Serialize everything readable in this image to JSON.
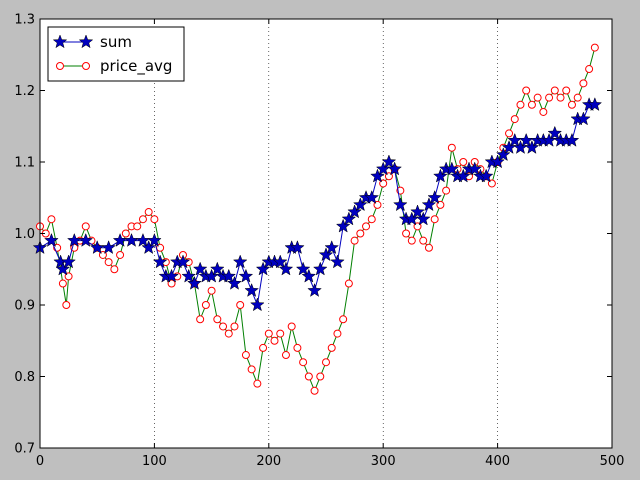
{
  "chart_data": {
    "type": "line",
    "xlim": [
      0,
      500
    ],
    "ylim": [
      0.7,
      1.3
    ],
    "x_ticks": [
      0,
      100,
      200,
      300,
      400,
      500
    ],
    "y_ticks": [
      0.7,
      0.8,
      0.9,
      1.0,
      1.1,
      1.2,
      1.3
    ],
    "x_tick_labels": [
      "0",
      "100",
      "200",
      "300",
      "400",
      "500"
    ],
    "y_tick_labels": [
      "0.7",
      "0.8",
      "0.9",
      "1.0",
      "1.1",
      "1.2",
      "1.3"
    ],
    "vertical_grid": true,
    "horizontal_grid": false,
    "legend_position": "top-left",
    "series": [
      {
        "name": "sum",
        "color": "#0000bf",
        "marker": "star",
        "x": [
          0,
          10,
          18,
          20,
          25,
          30,
          40,
          50,
          60,
          70,
          80,
          90,
          95,
          100,
          105,
          110,
          115,
          120,
          125,
          130,
          135,
          140,
          145,
          150,
          155,
          160,
          165,
          170,
          175,
          180,
          185,
          190,
          195,
          200,
          205,
          210,
          215,
          220,
          225,
          230,
          235,
          240,
          245,
          250,
          255,
          260,
          265,
          270,
          275,
          280,
          285,
          290,
          295,
          300,
          305,
          310,
          315,
          320,
          325,
          330,
          335,
          340,
          345,
          350,
          355,
          360,
          365,
          370,
          375,
          380,
          385,
          390,
          395,
          400,
          405,
          410,
          415,
          420,
          425,
          430,
          435,
          440,
          445,
          450,
          455,
          460,
          465,
          470,
          475,
          480,
          485
        ],
        "y": [
          0.98,
          0.99,
          0.96,
          0.95,
          0.96,
          0.99,
          0.99,
          0.98,
          0.98,
          0.99,
          0.99,
          0.99,
          0.98,
          0.99,
          0.96,
          0.94,
          0.94,
          0.96,
          0.96,
          0.94,
          0.93,
          0.95,
          0.94,
          0.94,
          0.95,
          0.94,
          0.94,
          0.93,
          0.96,
          0.94,
          0.92,
          0.9,
          0.95,
          0.96,
          0.96,
          0.96,
          0.95,
          0.98,
          0.98,
          0.95,
          0.94,
          0.92,
          0.95,
          0.97,
          0.98,
          0.96,
          1.01,
          1.02,
          1.03,
          1.04,
          1.05,
          1.05,
          1.08,
          1.09,
          1.1,
          1.09,
          1.04,
          1.02,
          1.02,
          1.03,
          1.02,
          1.04,
          1.05,
          1.08,
          1.09,
          1.09,
          1.08,
          1.08,
          1.09,
          1.09,
          1.08,
          1.08,
          1.1,
          1.1,
          1.11,
          1.12,
          1.13,
          1.12,
          1.13,
          1.12,
          1.13,
          1.13,
          1.13,
          1.14,
          1.13,
          1.13,
          1.13,
          1.16,
          1.16,
          1.18,
          1.18
        ]
      },
      {
        "name": "price_avg",
        "color": "#ff0000",
        "line_color": "#007f00",
        "marker": "circle",
        "x": [
          0,
          5,
          10,
          15,
          20,
          23,
          25,
          30,
          35,
          40,
          45,
          50,
          55,
          60,
          65,
          70,
          75,
          80,
          85,
          90,
          95,
          100,
          105,
          110,
          115,
          120,
          125,
          130,
          135,
          140,
          145,
          150,
          155,
          160,
          165,
          170,
          175,
          180,
          185,
          190,
          195,
          200,
          205,
          210,
          215,
          220,
          225,
          230,
          235,
          240,
          245,
          250,
          255,
          260,
          265,
          270,
          275,
          280,
          285,
          290,
          295,
          300,
          305,
          310,
          315,
          320,
          325,
          330,
          335,
          340,
          345,
          350,
          355,
          360,
          365,
          370,
          375,
          380,
          385,
          390,
          395,
          400,
          405,
          410,
          415,
          420,
          425,
          430,
          435,
          440,
          445,
          450,
          455,
          460,
          465,
          470,
          475,
          480,
          485
        ],
        "y": [
          1.01,
          1.0,
          1.02,
          0.98,
          0.93,
          0.9,
          0.94,
          0.98,
          0.99,
          1.01,
          0.99,
          0.98,
          0.97,
          0.96,
          0.95,
          0.97,
          1.0,
          1.01,
          1.01,
          1.02,
          1.03,
          1.02,
          0.98,
          0.96,
          0.93,
          0.94,
          0.97,
          0.96,
          0.93,
          0.88,
          0.9,
          0.92,
          0.88,
          0.87,
          0.86,
          0.87,
          0.9,
          0.83,
          0.81,
          0.79,
          0.84,
          0.86,
          0.85,
          0.86,
          0.83,
          0.87,
          0.84,
          0.82,
          0.8,
          0.78,
          0.8,
          0.82,
          0.84,
          0.86,
          0.88,
          0.93,
          0.99,
          1.0,
          1.01,
          1.02,
          1.04,
          1.07,
          1.08,
          1.09,
          1.06,
          1.0,
          0.99,
          1.01,
          0.99,
          0.98,
          1.02,
          1.04,
          1.06,
          1.12,
          1.09,
          1.1,
          1.08,
          1.1,
          1.09,
          1.08,
          1.07,
          1.1,
          1.12,
          1.14,
          1.16,
          1.18,
          1.2,
          1.18,
          1.19,
          1.17,
          1.19,
          1.2,
          1.19,
          1.2,
          1.18,
          1.19,
          1.21,
          1.23,
          1.26
        ]
      }
    ]
  }
}
